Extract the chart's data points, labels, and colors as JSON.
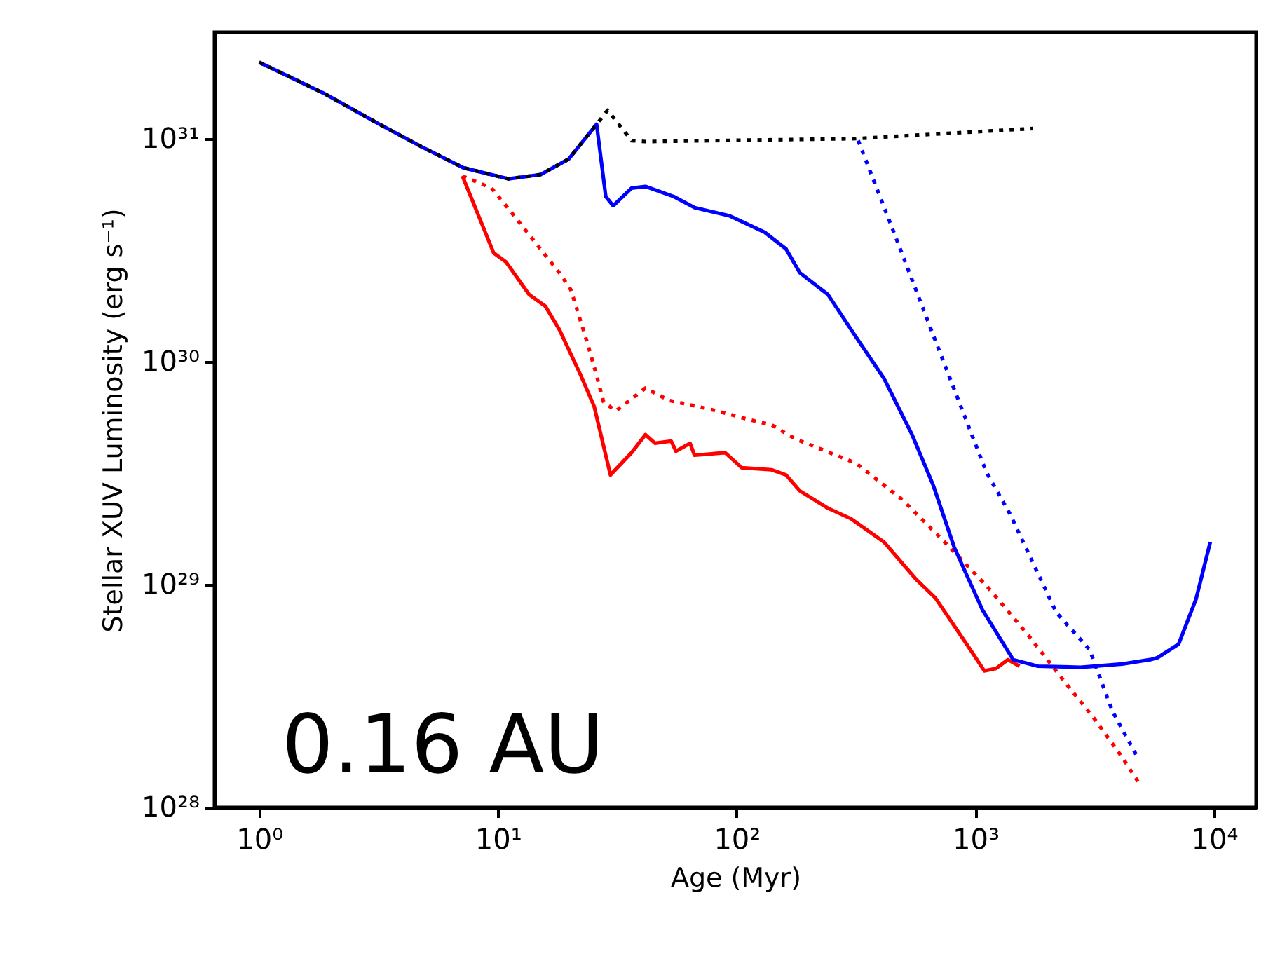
{
  "chart_data": {
    "type": "line",
    "xlabel": "Age (Myr)",
    "ylabel": "Stellar XUV Luminosity (erg s⁻¹)",
    "log": "xy",
    "grid": false,
    "xlim": [
      0.65,
      15000
    ],
    "ylim": [
      1e+28,
      3e+31
    ],
    "xticks": [
      {
        "value": 1,
        "label": "10⁰"
      },
      {
        "value": 10,
        "label": "10¹"
      },
      {
        "value": 100,
        "label": "10²"
      },
      {
        "value": 1000,
        "label": "10³"
      },
      {
        "value": 10000,
        "label": "10⁴"
      }
    ],
    "yticks": [
      {
        "value": 1e+28,
        "label": "10²⁸"
      },
      {
        "value": 1e+29,
        "label": "10²⁹"
      },
      {
        "value": 1e+30,
        "label": "10³⁰"
      },
      {
        "value": 1e+31,
        "label": "10³¹"
      }
    ],
    "annotations": [
      "0.16 AU"
    ],
    "series": [
      {
        "color": "#ff0000",
        "line_style": "solid",
        "x": [
          7.1,
          9.6,
          10.8,
          13.5,
          15.8,
          18.1,
          22.1,
          25.3,
          29.6,
          36.3,
          41.5,
          45.5,
          53.2,
          55.7,
          63.8,
          66.6,
          89.5,
          105,
          140,
          161,
          184,
          241,
          302,
          414,
          567,
          680,
          953,
          1090,
          1220,
          1370,
          1530
        ],
        "values": [
          6.8e+30,
          3.07e+30,
          2.8e+30,
          2e+30,
          1.77e+30,
          1.39e+30,
          8.8e+29,
          6.3e+29,
          3.1e+29,
          3.9e+29,
          4.7e+29,
          4.3e+29,
          4.4e+29,
          3.96e+29,
          4.3e+29,
          3.8e+29,
          3.9e+29,
          3.34e+29,
          3.27e+29,
          3.1e+29,
          2.63e+29,
          2.2e+29,
          1.97e+29,
          1.55e+29,
          1.05e+29,
          8.7e+28,
          5.1e+28,
          4.1e+28,
          4.2e+28,
          4.6e+28,
          4.3e+28
        ]
      },
      {
        "color": "#ff0000",
        "line_style": "dotted",
        "x": [
          7.1,
          9.4,
          10.5,
          14.1,
          18.1,
          20.2,
          23.6,
          25.8,
          27.7,
          31.2,
          41.5,
          52,
          78,
          120,
          140,
          176,
          316,
          495,
          743,
          1120,
          1670,
          2300,
          3150,
          4120,
          4830
        ],
        "values": [
          6.8e+30,
          6e+30,
          5.2e+30,
          3.5e+30,
          2.5e+30,
          2.1e+30,
          1.23e+30,
          8.8e+29,
          6.6e+29,
          6e+29,
          7.6e+29,
          6.7e+29,
          6.1e+29,
          5.4e+29,
          5.2e+29,
          4.5e+29,
          3.5e+29,
          2.4e+29,
          1.55e+29,
          9.8e+28,
          5.9e+28,
          3.8e+28,
          2.5e+28,
          1.68e+28,
          1.29e+28
        ]
      },
      {
        "color": "#0000ff",
        "line_style": "solid",
        "x": [
          1,
          1.86,
          3.19,
          4.78,
          7.17,
          11.1,
          15.1,
          19.8,
          25.9,
          28.3,
          30.4,
          36.3,
          41.5,
          54.5,
          66.7,
          93.6,
          131,
          161,
          184,
          241,
          316,
          414,
          543,
          665,
          815,
          1070,
          1440,
          1830,
          2750,
          4120,
          5400,
          5800,
          7100,
          8400,
          9640
        ],
        "values": [
          2.2e+31,
          1.6e+31,
          1.16e+31,
          9.2e+30,
          7.4e+30,
          6.6e+30,
          6.9e+30,
          8.1e+30,
          1.16e+31,
          5.5e+30,
          5e+30,
          6e+30,
          6.1e+30,
          5.5e+30,
          4.9e+30,
          4.5e+30,
          3.8e+30,
          3.2e+30,
          2.5e+30,
          2e+30,
          1.29e+30,
          8.4e+29,
          4.7e+29,
          2.8e+29,
          1.47e+29,
          7.7e+28,
          4.6e+28,
          4.3e+28,
          4.25e+28,
          4.4e+28,
          4.6e+28,
          4.7e+28,
          5.4e+28,
          8.6e+28,
          1.55e+29
        ]
      },
      {
        "color": "#0000ff",
        "line_style": "dotted",
        "x": [
          323,
          474,
          680,
          1110,
          1400,
          2180,
          3010,
          3750,
          4840
        ],
        "values": [
          9.8e+30,
          3.4e+30,
          1.24e+30,
          3.2e+29,
          2.06e+29,
          7.5e+28,
          5.1e+28,
          2.7e+28,
          1.64e+28
        ]
      },
      {
        "color": "#000000",
        "line_style": "dotted",
        "x": [
          1,
          1.86,
          3.19,
          4.78,
          7.17,
          11.1,
          15.1,
          19.8,
          25.9,
          28.8,
          36.3,
          41.5,
          316,
          1740
        ],
        "values": [
          2.2e+31,
          1.6e+31,
          1.16e+31,
          9.2e+30,
          7.4e+30,
          6.6e+30,
          6.9e+30,
          8.1e+30,
          1.16e+31,
          1.34e+31,
          9.8e+30,
          9.7e+30,
          1e+31,
          1.11e+31
        ]
      }
    ]
  }
}
